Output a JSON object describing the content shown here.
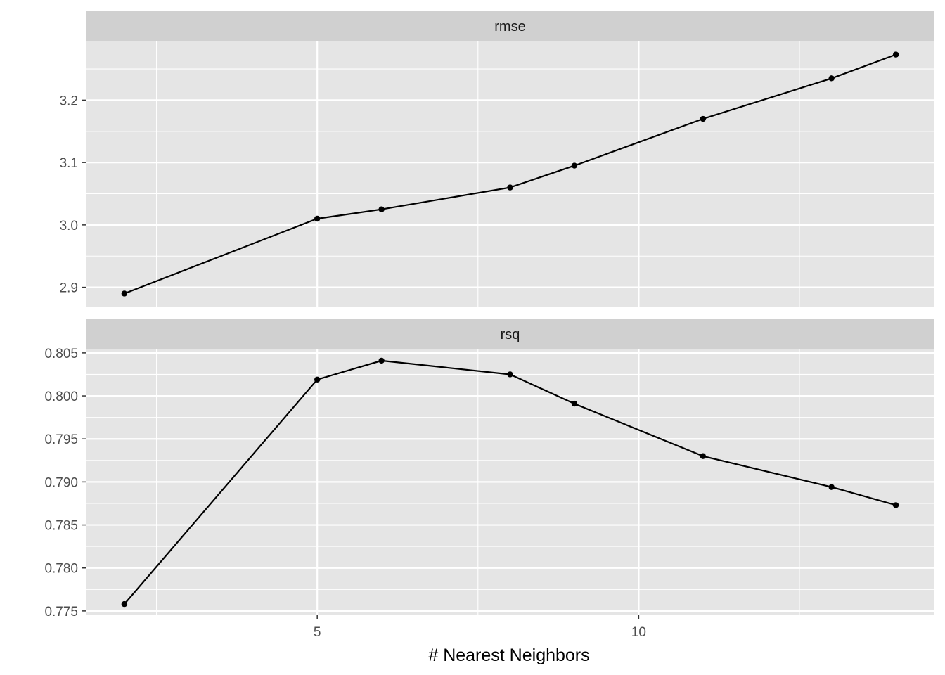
{
  "chart_data": {
    "type": "line",
    "xlabel": "# Nearest Neighbors",
    "ylabel": "",
    "x_ticks": [
      5,
      10
    ],
    "x_tick_labels": [
      "5",
      "10"
    ],
    "xlim": [
      1.4,
      14.6
    ],
    "grid": true,
    "facet_layout": "stacked-vertical",
    "colors": {
      "panel": "#e5e5e5",
      "strip": "#d0d0d0",
      "line": "#000000",
      "grid": "#ffffff"
    },
    "panels": [
      {
        "strip": "rmse",
        "ylim": [
          2.868,
          3.294
        ],
        "y_ticks": [
          2.9,
          3.0,
          3.1,
          3.2
        ],
        "y_tick_labels": [
          "2.9",
          "3.0",
          "3.1",
          "3.2"
        ],
        "x": [
          2,
          5,
          6,
          8,
          9,
          11,
          13,
          14
        ],
        "y": [
          2.89,
          3.01,
          3.025,
          3.06,
          3.095,
          3.17,
          3.235,
          3.273
        ]
      },
      {
        "strip": "rsq",
        "ylim": [
          0.7745,
          0.8054
        ],
        "y_ticks": [
          0.775,
          0.78,
          0.785,
          0.79,
          0.795,
          0.8,
          0.805
        ],
        "y_tick_labels": [
          "0.775",
          "0.780",
          "0.785",
          "0.790",
          "0.795",
          "0.800",
          "0.805"
        ],
        "x": [
          2,
          5,
          6,
          8,
          9,
          11,
          13,
          14
        ],
        "y": [
          0.7758,
          0.8019,
          0.8041,
          0.8025,
          0.7991,
          0.793,
          0.7894,
          0.7873
        ]
      }
    ]
  }
}
